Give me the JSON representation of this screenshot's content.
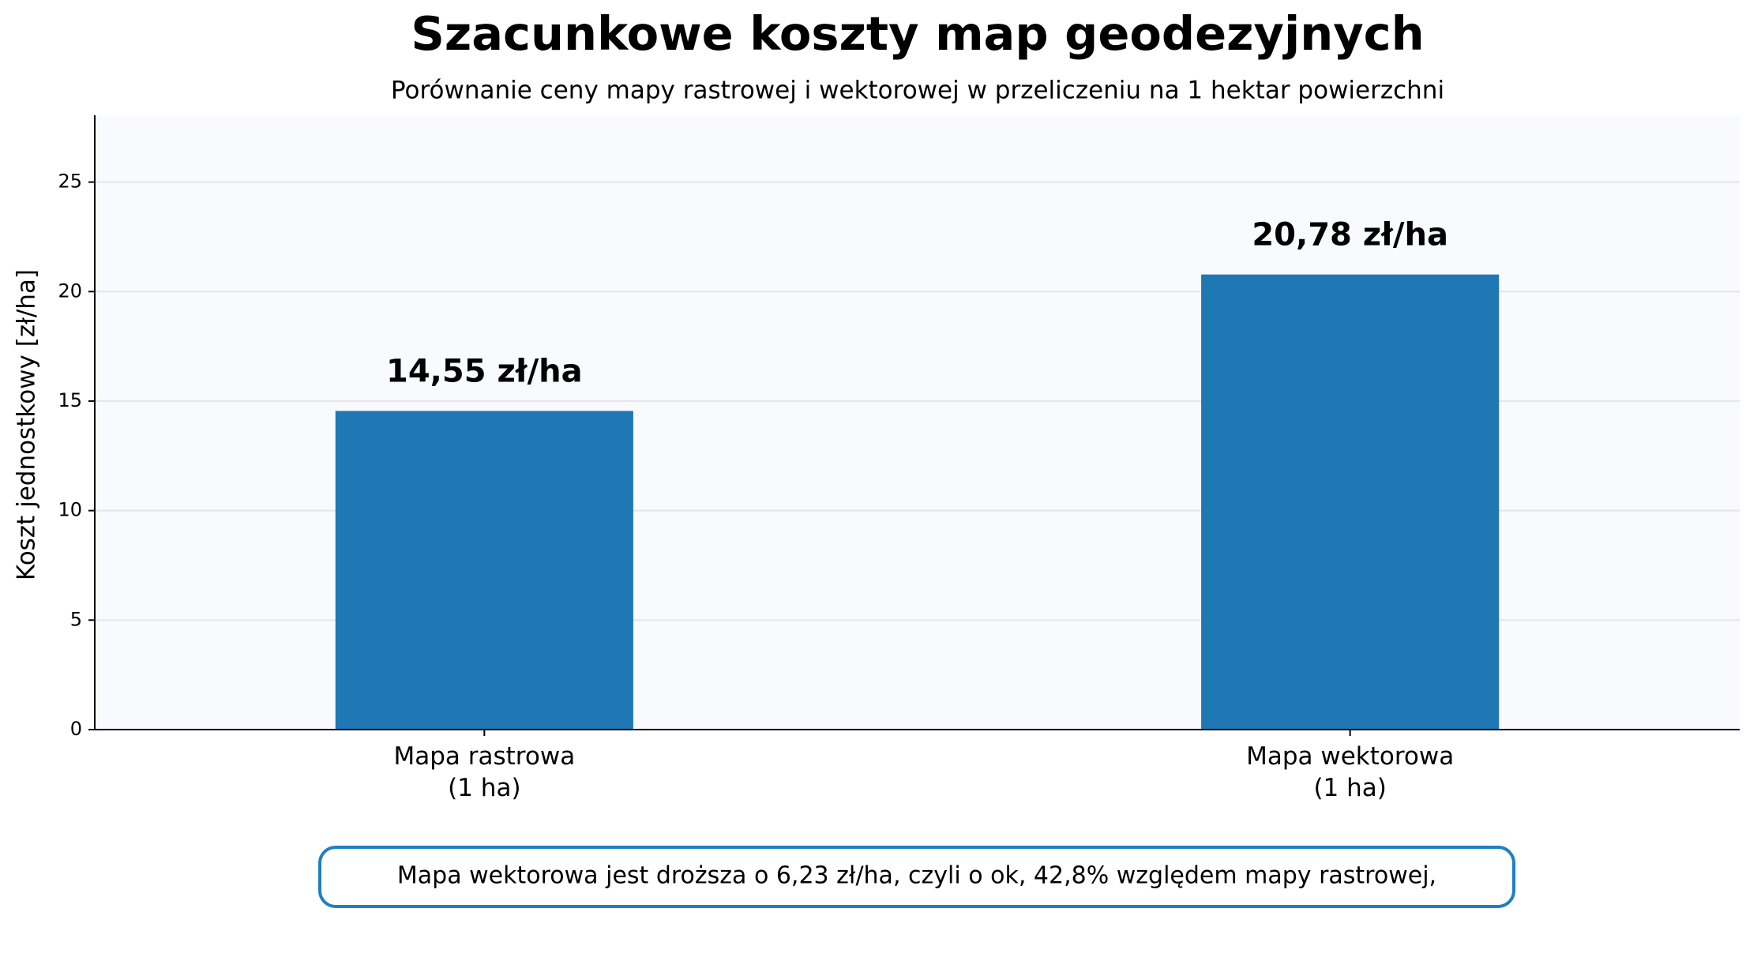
{
  "chart_data": {
    "type": "bar",
    "title": "Szacunkowe koszty map geodezyjnych",
    "subtitle": "Porównanie ceny mapy rastrowej i wektorowej w przeliczeniu na 1 hektar powierzchni",
    "y_label": "Koszt jednostkowy [zł/ha]",
    "categories": [
      "Mapa rastrowa\n(1 ha)",
      "Mapa wektorowa\n(1 ha)"
    ],
    "values": [
      14.55,
      20.78
    ],
    "value_labels": [
      "14,55 zł/ha",
      "20,78 zł/ha"
    ],
    "color": "#1f77b4",
    "ylim": [
      0,
      28.05
    ],
    "yticks": [
      0,
      5,
      10,
      15,
      20,
      25
    ],
    "grid": true,
    "annotation": "Mapa wektorowa jest droższa o 6,23 zł/ha, czyli o ok, 42,8% względem mapy rastrowej,"
  }
}
